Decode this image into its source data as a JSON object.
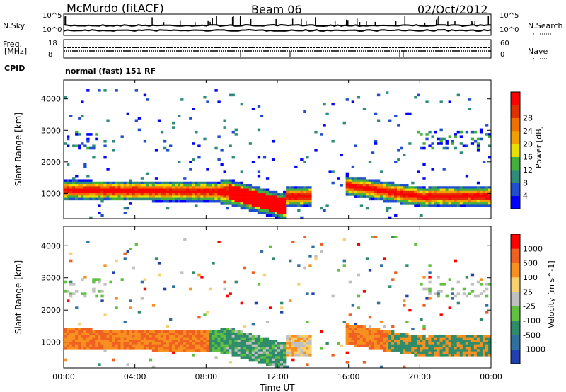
{
  "header": {
    "station": "McMurdo (fitACF)",
    "beam": "Beam 06",
    "date": "02/Oct/2012"
  },
  "panels": {
    "nsky_label": "N.Sky",
    "nsearch_label": "N.Search",
    "nsky_scale_hi": "10^5",
    "nsky_scale_lo": "10^0",
    "freq_label": "Freq.",
    "freq_unit": "[MHz]",
    "freq_hi": "18",
    "freq_lo": "8",
    "nave_label": "Nave",
    "nave_hi": "60",
    "nave_lo": "0",
    "cpid_label": "CPID",
    "cpid_value": "normal (fast) 151 RF"
  },
  "chart_data": {
    "type": "heatmap",
    "xlabel": "Time UT",
    "x_ticks": [
      "00:00",
      "04:00",
      "08:00",
      "12:00",
      "16:00",
      "20:00",
      "00:00"
    ],
    "ylabel": "Slant Range [km]",
    "y_ticks": [
      1000,
      2000,
      3000,
      4000
    ],
    "ylim": [
      200,
      4600
    ],
    "power": {
      "colorbar_label": "Power [dB]",
      "ticks": [
        "4",
        "8",
        "12",
        "16",
        "20",
        "24",
        "28"
      ],
      "colors": [
        "#0000ff",
        "#1f4fd0",
        "#2f8c7a",
        "#44b03c",
        "#e8e000",
        "#f0a000",
        "#f07000",
        "#e03000",
        "#ff0000"
      ]
    },
    "velocity": {
      "colorbar_label": "Velocity [m s^-1]",
      "ticks": [
        "1000",
        "500",
        "100",
        "25",
        "-25",
        "-100",
        "-500",
        "-1000"
      ],
      "colors": [
        "#2040b0",
        "#3070a0",
        "#2f8c6a",
        "#60c040",
        "#c0c0c0",
        "#f8d070",
        "#f89020",
        "#f06020",
        "#ff0000"
      ]
    }
  }
}
